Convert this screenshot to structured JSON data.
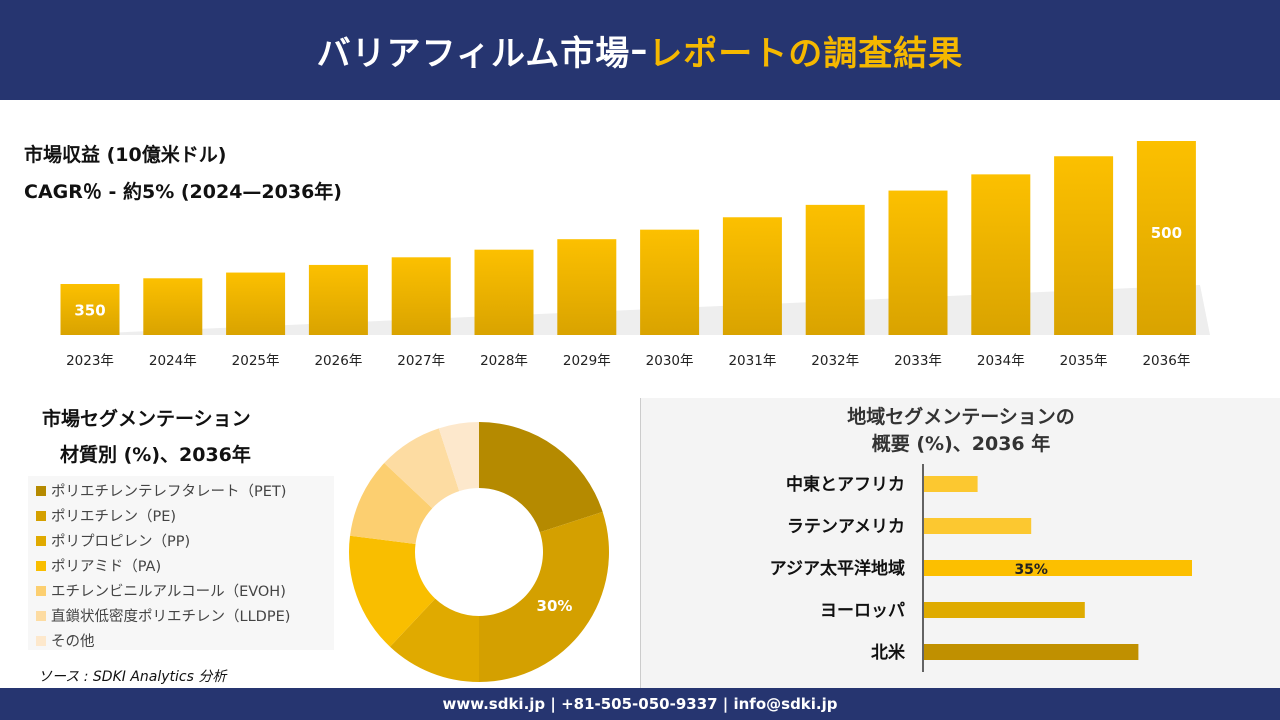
{
  "header": {
    "title_main": "バリアフィルム市場",
    "title_sep": "–",
    "title_accent": "レポートの調査結果"
  },
  "kpi": {
    "revenue_label": "市場収益 (10億米ドル)",
    "cagr_label": "CAGR％ - 約5% (2024—2036年)"
  },
  "colors": {
    "header_bg": "#263570",
    "accent": "#f5b800"
  },
  "chart_data": [
    {
      "type": "bar",
      "title": "",
      "xlabel": "",
      "ylabel": "",
      "categories": [
        "2023年",
        "2024年",
        "2025年",
        "2026年",
        "2027年",
        "2028年",
        "2029年",
        "2030年",
        "2031年",
        "2032年",
        "2033年",
        "2034年",
        "2035年",
        "2036年"
      ],
      "values": [
        350,
        356,
        362,
        370,
        378,
        386,
        397,
        407,
        420,
        433,
        448,
        465,
        484,
        500
      ],
      "data_labels": {
        "0": "350",
        "13": "500"
      },
      "grid": false
    },
    {
      "type": "pie",
      "subtype": "donut",
      "title": "市場セグメンテーション",
      "subtitle": "材質別 (%)、2036年",
      "labels": [
        "ポリエチレンテレフタレート（PET)",
        "ポリエチレン（PE)",
        "ポリプロピレン（PP)",
        "ポリアミド（PA)",
        "エチレンビニルアルコール（EVOH)",
        "直鎖状低密度ポリエチレン（LLDPE)",
        "その他"
      ],
      "values": [
        20,
        30,
        12,
        15,
        10,
        8,
        5
      ],
      "colors": [
        "#b58a00",
        "#d4a000",
        "#e0aa00",
        "#f9be00",
        "#fccf70",
        "#fddca2",
        "#fde8cc"
      ],
      "data_labels": {
        "1": "30%"
      },
      "legend": "left"
    },
    {
      "type": "bar",
      "orientation": "horizontal",
      "title": "地域セグメンテーションの\n概要 (%)、2036 年",
      "categories": [
        "中東とアフリカ",
        "ラテンアメリカ",
        "アジア太平洋地域",
        "ヨーロッパ",
        "北米"
      ],
      "values": [
        7,
        14,
        35,
        21,
        28
      ],
      "colors": [
        "#fcc830",
        "#fcc830",
        "#fcbf00",
        "#dfab00",
        "#c09000"
      ],
      "data_labels": {
        "2": "35%"
      }
    }
  ],
  "source": "ソース : SDKI Analytics 分析",
  "footer": "www.sdki.jp | +81-505-050-9337 | info@sdki.jp"
}
